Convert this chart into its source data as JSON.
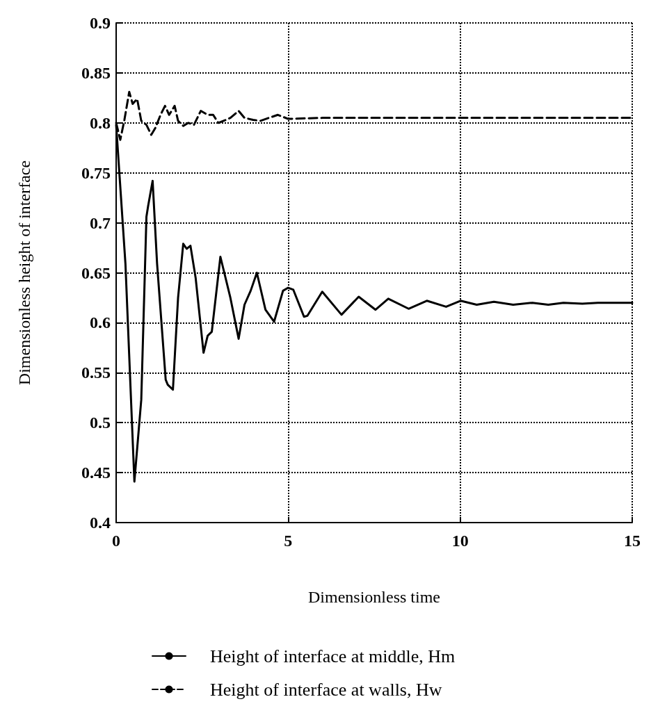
{
  "chart_data": {
    "type": "line",
    "xlabel": "Dimensionless time",
    "ylabel": "Dimensionless height of interface",
    "xlim": [
      0,
      15
    ],
    "xticks": [
      0,
      5,
      10,
      15
    ],
    "ylim": [
      0.4,
      0.9
    ],
    "yticks": [
      0.4,
      0.45,
      0.5,
      0.55,
      0.6,
      0.65,
      0.7,
      0.75,
      0.8,
      0.85,
      0.9
    ],
    "grid": true,
    "legend": "bottom",
    "series": [
      {
        "name": "Height of interface at middle, Hm",
        "color": "#000000",
        "line_style": "solid",
        "x": [
          0,
          0.27,
          0.53,
          0.73,
          0.88,
          0.93,
          1.06,
          1.19,
          1.44,
          1.5,
          1.65,
          1.8,
          1.95,
          2.05,
          2.16,
          2.31,
          2.54,
          2.66,
          2.78,
          3.03,
          3.32,
          3.56,
          3.73,
          3.91,
          4.09,
          4.34,
          4.59,
          4.85,
          5.0,
          5.15,
          5.46,
          5.56,
          5.99,
          6.55,
          7.05,
          7.54,
          7.91,
          8.5,
          9.03,
          9.59,
          10.01,
          10.48,
          10.98,
          11.54,
          12.1,
          12.56,
          13.0,
          13.55,
          14.0,
          15
        ],
        "values": [
          0.798,
          0.659,
          0.441,
          0.523,
          0.706,
          0.717,
          0.742,
          0.659,
          0.543,
          0.538,
          0.533,
          0.625,
          0.679,
          0.674,
          0.677,
          0.645,
          0.57,
          0.587,
          0.591,
          0.666,
          0.625,
          0.584,
          0.618,
          0.632,
          0.65,
          0.613,
          0.601,
          0.632,
          0.635,
          0.633,
          0.606,
          0.607,
          0.631,
          0.608,
          0.626,
          0.613,
          0.624,
          0.614,
          0.622,
          0.616,
          0.622,
          0.618,
          0.621,
          0.618,
          0.62,
          0.618,
          0.62,
          0.619,
          0.62,
          0.62
        ]
      },
      {
        "name": "Height of interface at walls, Hw",
        "color": "#000000",
        "line_style": "dashed",
        "x": [
          0,
          0.12,
          0.24,
          0.38,
          0.48,
          0.61,
          0.73,
          0.88,
          1.02,
          1.14,
          1.29,
          1.42,
          1.54,
          1.7,
          1.8,
          1.95,
          2.1,
          2.26,
          2.46,
          2.66,
          2.82,
          2.97,
          3.12,
          3.32,
          3.56,
          3.73,
          3.98,
          4.19,
          4.44,
          4.7,
          5.0,
          6.0,
          8.0,
          10.0,
          12.0,
          15
        ],
        "values": [
          0.8,
          0.783,
          0.803,
          0.831,
          0.819,
          0.824,
          0.802,
          0.798,
          0.788,
          0.795,
          0.808,
          0.817,
          0.808,
          0.817,
          0.802,
          0.797,
          0.8,
          0.798,
          0.812,
          0.808,
          0.808,
          0.8,
          0.802,
          0.805,
          0.812,
          0.805,
          0.803,
          0.802,
          0.805,
          0.808,
          0.804,
          0.805,
          0.805,
          0.805,
          0.805,
          0.805
        ]
      }
    ]
  }
}
